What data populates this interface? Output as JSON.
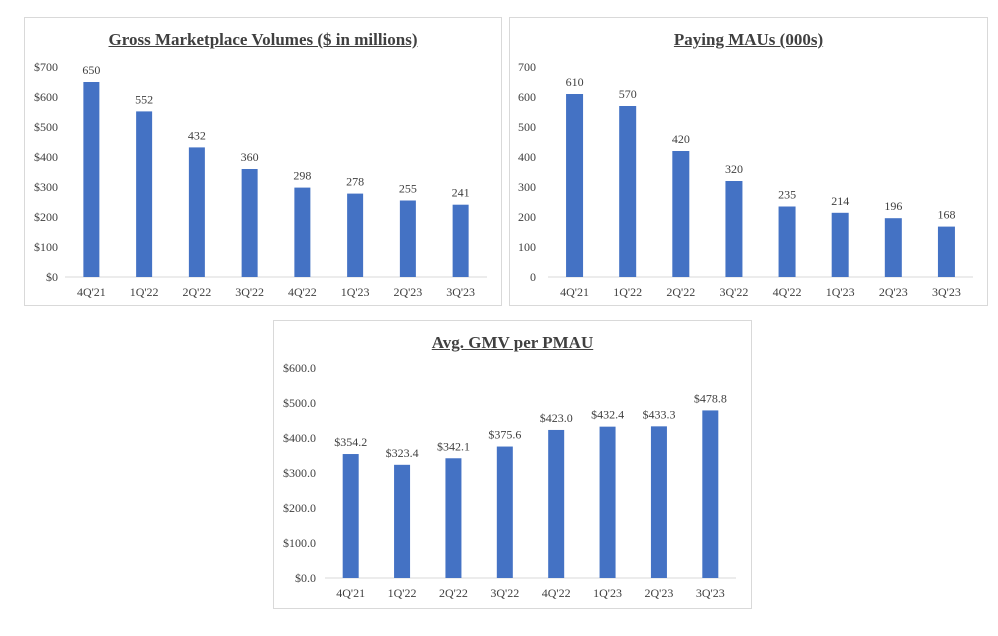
{
  "colors": {
    "bar": "#4472c4",
    "text": "#404040",
    "axis": "#d9d9d9",
    "border": "#d9d9d9"
  },
  "chart_data": [
    {
      "type": "bar",
      "title": "Gross Marketplace Volumes ($ in millions)",
      "xlabel": "",
      "ylabel": "",
      "categories": [
        "4Q'21",
        "1Q'22",
        "2Q'22",
        "3Q'22",
        "4Q'22",
        "1Q'23",
        "2Q'23",
        "3Q'23"
      ],
      "values": [
        650,
        552,
        432,
        360,
        298,
        278,
        255,
        241
      ],
      "data_labels": [
        "650",
        "552",
        "432",
        "360",
        "298",
        "278",
        "255",
        "241"
      ],
      "yticks": [
        "$0",
        "$100",
        "$200",
        "$300",
        "$400",
        "$500",
        "$600",
        "$700"
      ],
      "ylim": [
        0,
        700
      ],
      "grid": false,
      "legend": "none"
    },
    {
      "type": "bar",
      "title": "Paying MAUs (000s)",
      "xlabel": "",
      "ylabel": "",
      "categories": [
        "4Q'21",
        "1Q'22",
        "2Q'22",
        "3Q'22",
        "4Q'22",
        "1Q'23",
        "2Q'23",
        "3Q'23"
      ],
      "values": [
        610,
        570,
        420,
        320,
        235,
        214,
        196,
        168
      ],
      "data_labels": [
        "610",
        "570",
        "420",
        "320",
        "235",
        "214",
        "196",
        "168"
      ],
      "yticks": [
        "0",
        "100",
        "200",
        "300",
        "400",
        "500",
        "600",
        "700"
      ],
      "ylim": [
        0,
        700
      ],
      "grid": false,
      "legend": "none"
    },
    {
      "type": "bar",
      "title": "Avg. GMV per PMAU",
      "xlabel": "",
      "ylabel": "",
      "categories": [
        "4Q'21",
        "1Q'22",
        "2Q'22",
        "3Q'22",
        "4Q'22",
        "1Q'23",
        "2Q'23",
        "3Q'23"
      ],
      "values": [
        354.2,
        323.4,
        342.1,
        375.6,
        423.0,
        432.4,
        433.3,
        478.8
      ],
      "data_labels": [
        "$354.2",
        "$323.4",
        "$342.1",
        "$375.6",
        "$423.0",
        "$432.4",
        "$433.3",
        "$478.8"
      ],
      "yticks": [
        "$0.0",
        "$100.0",
        "$200.0",
        "$300.0",
        "$400.0",
        "$500.0",
        "$600.0"
      ],
      "ylim": [
        0,
        600
      ],
      "grid": false,
      "legend": "none"
    }
  ]
}
